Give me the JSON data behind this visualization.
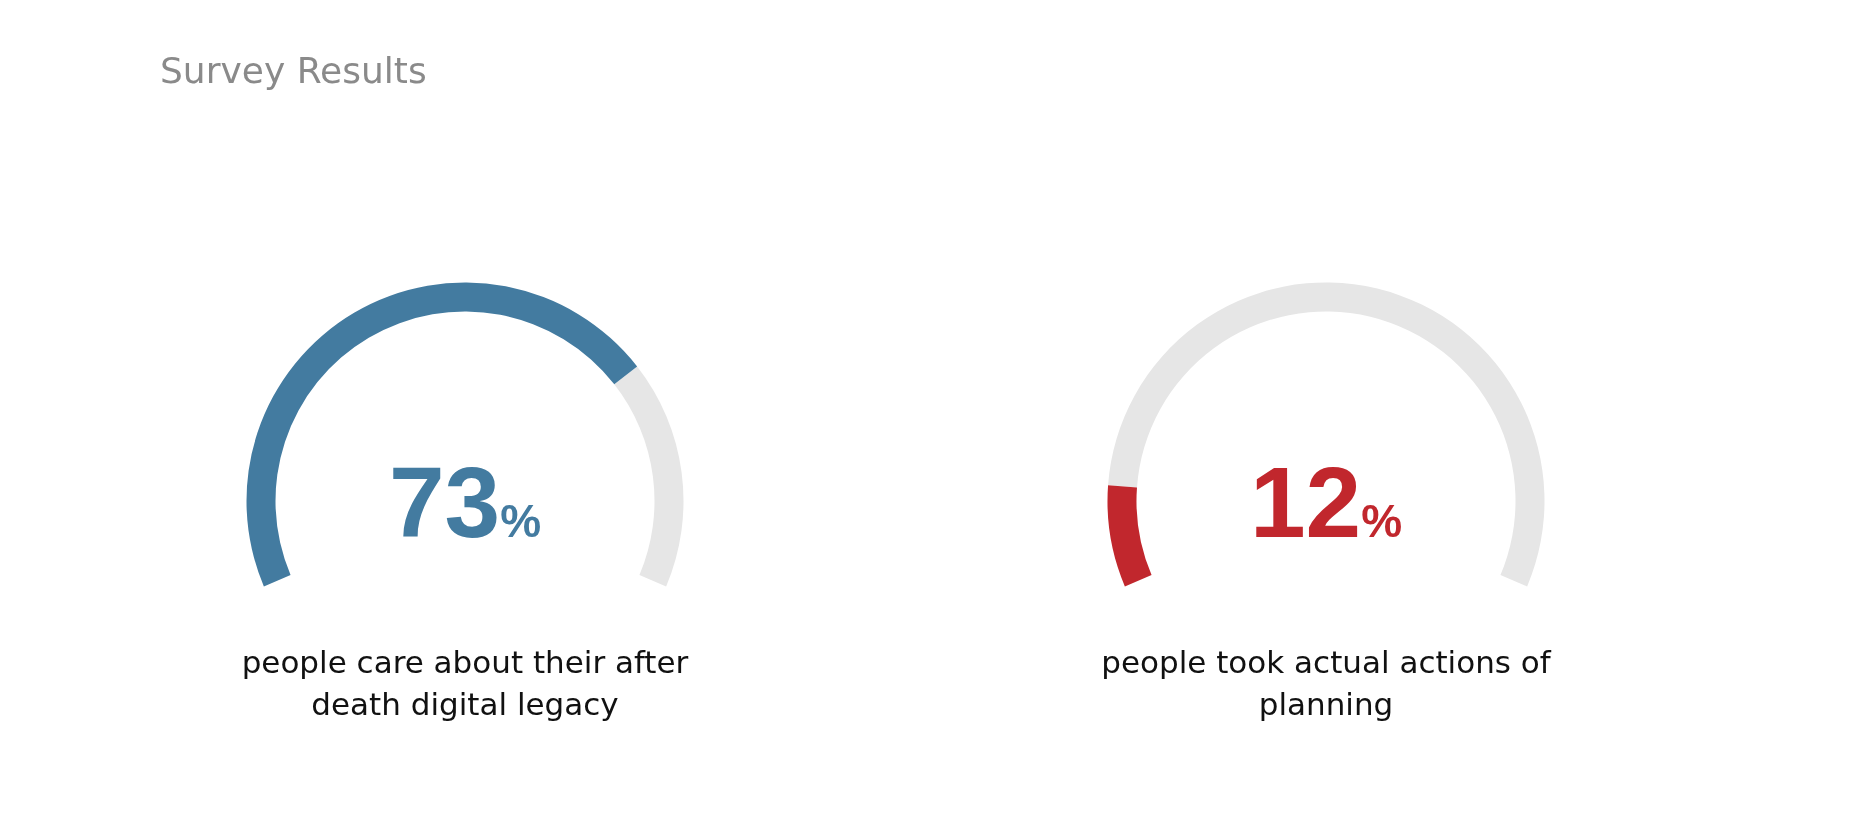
{
  "chart_data": [
    {
      "type": "donut",
      "title": "Survey Results",
      "categories": [
        null,
        null
      ],
      "values": [
        73,
        27
      ],
      "colors": [
        "#437ba0",
        "#e6e6e6"
      ],
      "annotations": [
        "73%",
        "people care about their after death digital legacy"
      ]
    },
    {
      "type": "donut",
      "categories": [
        null,
        null
      ],
      "values": [
        12,
        88
      ],
      "colors": [
        "#c1272d",
        "#e6e6e6"
      ],
      "annotations": [
        "12%",
        "people took actual actions of planning"
      ]
    }
  ]
}
